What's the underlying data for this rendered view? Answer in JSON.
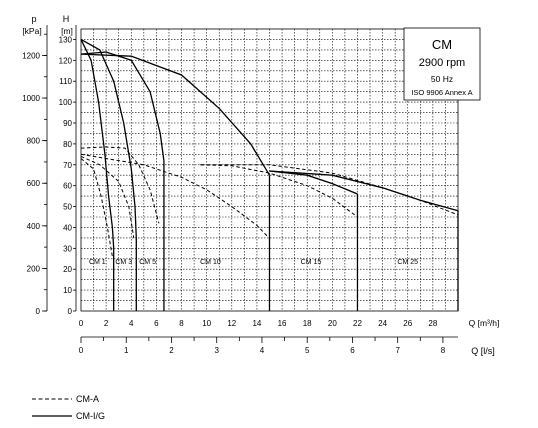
{
  "chart_data": {
    "type": "line",
    "info_box": {
      "title": "CM",
      "speed": "2900 rpm",
      "frequency": "50 Hz",
      "standard": "ISO 9906 Annex A"
    },
    "y_axes": {
      "pressure": {
        "unit_top": "p",
        "unit_label": "[kPa]",
        "ticks": [
          0,
          200,
          400,
          600,
          800,
          1000,
          1200
        ]
      },
      "head": {
        "unit_top": "H",
        "unit_label": "[m]",
        "ticks": [
          0,
          10,
          20,
          30,
          40,
          50,
          60,
          70,
          80,
          90,
          100,
          110,
          120,
          130
        ],
        "range": [
          0,
          135
        ]
      }
    },
    "x_axes": {
      "flow_m3h": {
        "label": "Q [m³/h]",
        "range": [
          0,
          30
        ],
        "ticks": [
          0,
          2,
          4,
          6,
          8,
          10,
          12,
          14,
          16,
          18,
          20,
          22,
          24,
          26,
          28
        ]
      },
      "flow_ls": {
        "label": "Q [l/s]",
        "ticks": [
          0,
          1,
          2,
          3,
          4,
          5,
          6,
          7,
          8
        ]
      }
    },
    "grid": true,
    "series": [
      {
        "name": "CM-A",
        "style": "dashed",
        "curves": [
          [
            [
              0,
              73
            ],
            [
              1,
              68
            ],
            [
              1.6,
              55
            ],
            [
              2.1,
              40
            ],
            [
              2.5,
              26
            ]
          ],
          [
            [
              0,
              74
            ],
            [
              1.5,
              70
            ],
            [
              3,
              62
            ],
            [
              3.8,
              50
            ],
            [
              4.2,
              35
            ]
          ],
          [
            [
              0,
              78
            ],
            [
              2,
              78.5
            ],
            [
              3.5,
              78
            ],
            [
              4.6,
              70
            ],
            [
              5.5,
              58
            ],
            [
              6.2,
              42
            ]
          ],
          [
            [
              0,
              75
            ],
            [
              5,
              70
            ],
            [
              8,
              64
            ],
            [
              10,
              58
            ],
            [
              12,
              50
            ],
            [
              14,
              41
            ],
            [
              14.8,
              36
            ]
          ],
          [
            [
              9.5,
              70
            ],
            [
              12,
              69.5
            ],
            [
              15,
              66
            ],
            [
              18,
              60
            ],
            [
              20,
              54
            ],
            [
              22,
              45
            ]
          ],
          [
            [
              9.5,
              70
            ],
            [
              15,
              70
            ],
            [
              20,
              66
            ],
            [
              24,
              59
            ],
            [
              27,
              53
            ],
            [
              30,
              46
            ]
          ]
        ]
      },
      {
        "name": "CM-I/G",
        "style": "solid",
        "curves": [
          [
            [
              0,
              130
            ],
            [
              0.8,
              120
            ],
            [
              1.4,
              100
            ],
            [
              1.9,
              75
            ],
            [
              2.2,
              55
            ],
            [
              2.5,
              40
            ],
            [
              2.6,
              30
            ]
          ],
          [
            [
              0,
              130
            ],
            [
              1.5,
              125
            ],
            [
              2.6,
              110
            ],
            [
              3.4,
              90
            ],
            [
              4,
              68
            ],
            [
              4.3,
              50
            ],
            [
              4.4,
              35
            ]
          ],
          [
            [
              0,
              123
            ],
            [
              2,
              124
            ],
            [
              4,
              120
            ],
            [
              5.5,
              105
            ],
            [
              6.3,
              85
            ],
            [
              6.6,
              72
            ]
          ],
          [
            [
              0,
              123
            ],
            [
              4,
              122
            ],
            [
              8,
              113
            ],
            [
              11,
              97
            ],
            [
              13.5,
              80
            ],
            [
              15,
              65
            ]
          ],
          [
            [
              15,
              67
            ],
            [
              18,
              65
            ],
            [
              20,
              61
            ],
            [
              22,
              56
            ]
          ],
          [
            [
              15,
              67
            ],
            [
              20,
              65
            ],
            [
              24,
              59
            ],
            [
              27,
              53
            ],
            [
              30,
              48
            ]
          ]
        ]
      }
    ],
    "curve_labels": [
      "CM 1",
      "CM 3",
      "CM 5",
      "CM 10",
      "CM 15",
      "CM 25"
    ],
    "legend": [
      {
        "label": "CM-A",
        "style": "dashed"
      },
      {
        "label": "CM-I/G",
        "style": "solid"
      }
    ],
    "legend_position": "bottom-left"
  }
}
